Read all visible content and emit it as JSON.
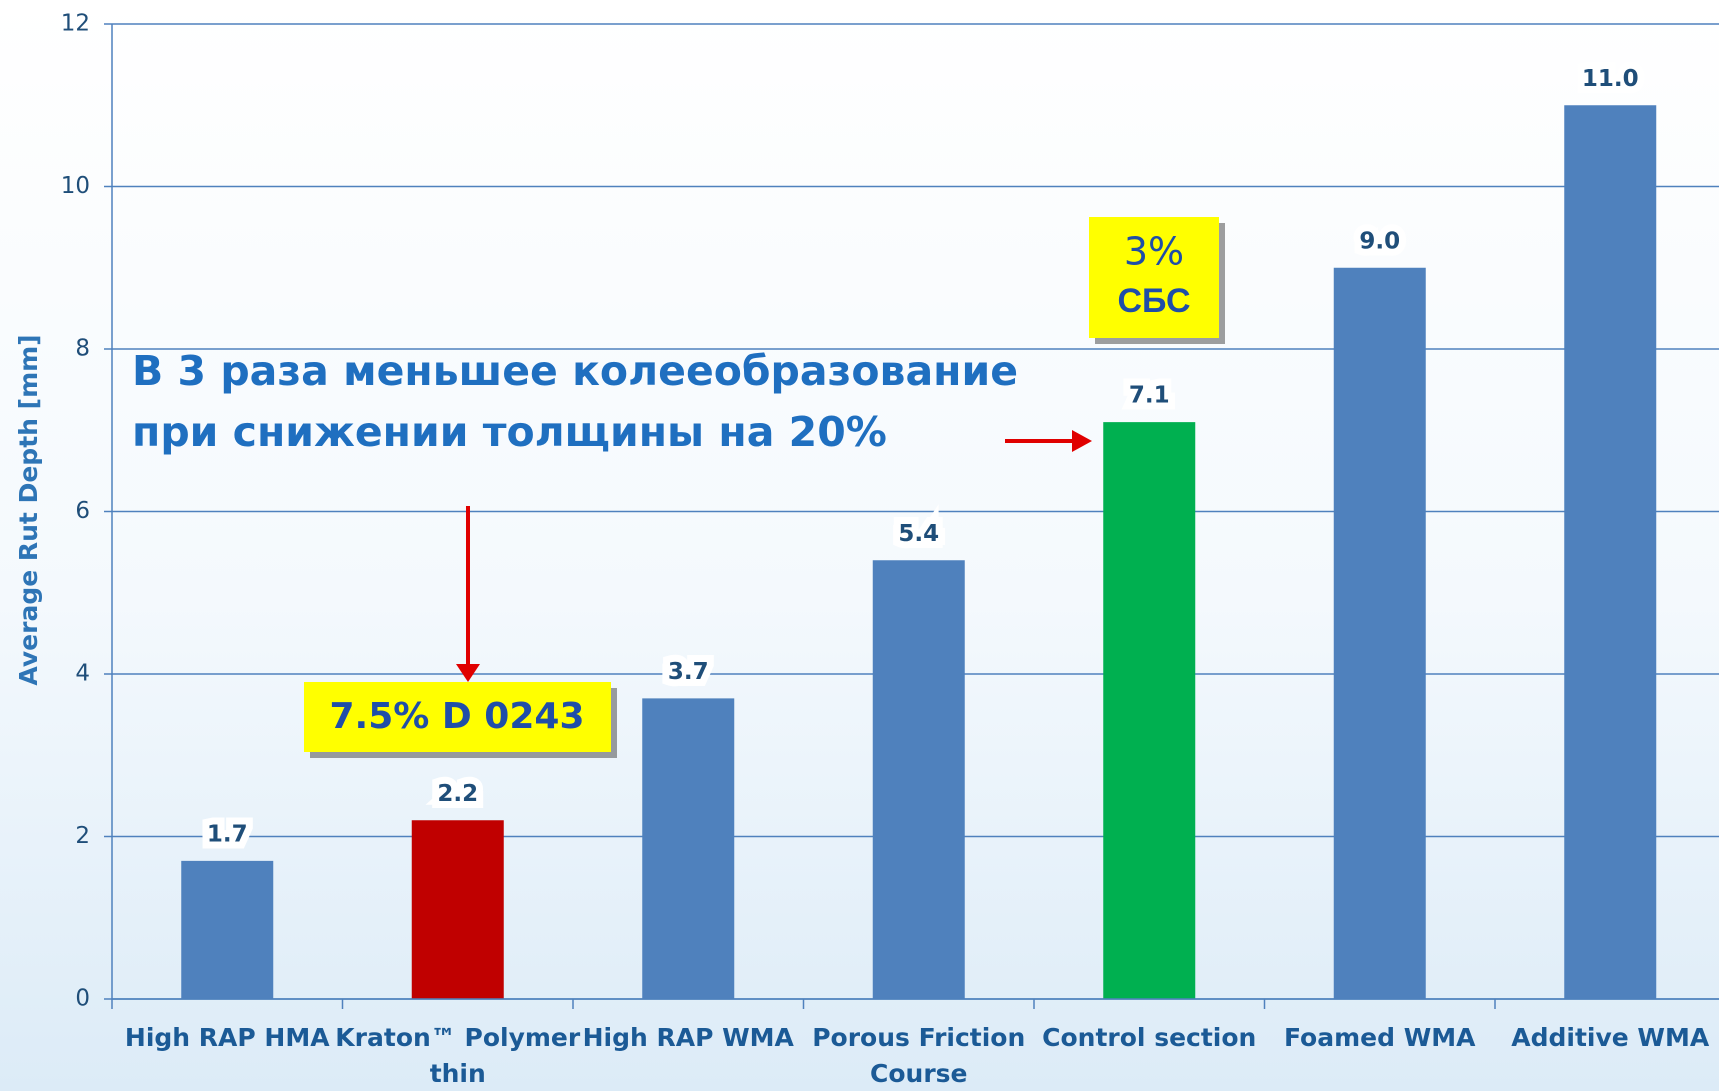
{
  "chart_data": {
    "type": "bar",
    "categories": [
      "High RAP HMA",
      "Kraton™ Polymer thin",
      "High RAP WMA",
      "Porous Friction Course",
      "Control section",
      "Foamed WMA",
      "Additive WMA"
    ],
    "values": [
      1.7,
      2.2,
      3.7,
      5.4,
      7.1,
      9.0,
      11.0
    ],
    "value_labels": [
      "1.7",
      "2.2",
      "3.7",
      "5.4",
      "7.1",
      "9.0",
      "11.0"
    ],
    "colors": [
      "#4f81bd",
      "#c00000",
      "#4f81bd",
      "#4f81bd",
      "#00b050",
      "#4f81bd",
      "#4f81bd"
    ],
    "ylabel": "Average Rut Depth [mm]",
    "ylim": [
      0,
      12
    ],
    "yticks": [
      0,
      2,
      4,
      6,
      8,
      10,
      12
    ],
    "grid": true,
    "annotation": [
      "В 3 раза меньшее колееобразование",
      "при снижении толщины на 20%"
    ],
    "callouts": [
      {
        "lines": [
          "7.5% D 0243"
        ]
      },
      {
        "lines": [
          "3%",
          "СБС"
        ]
      }
    ]
  }
}
